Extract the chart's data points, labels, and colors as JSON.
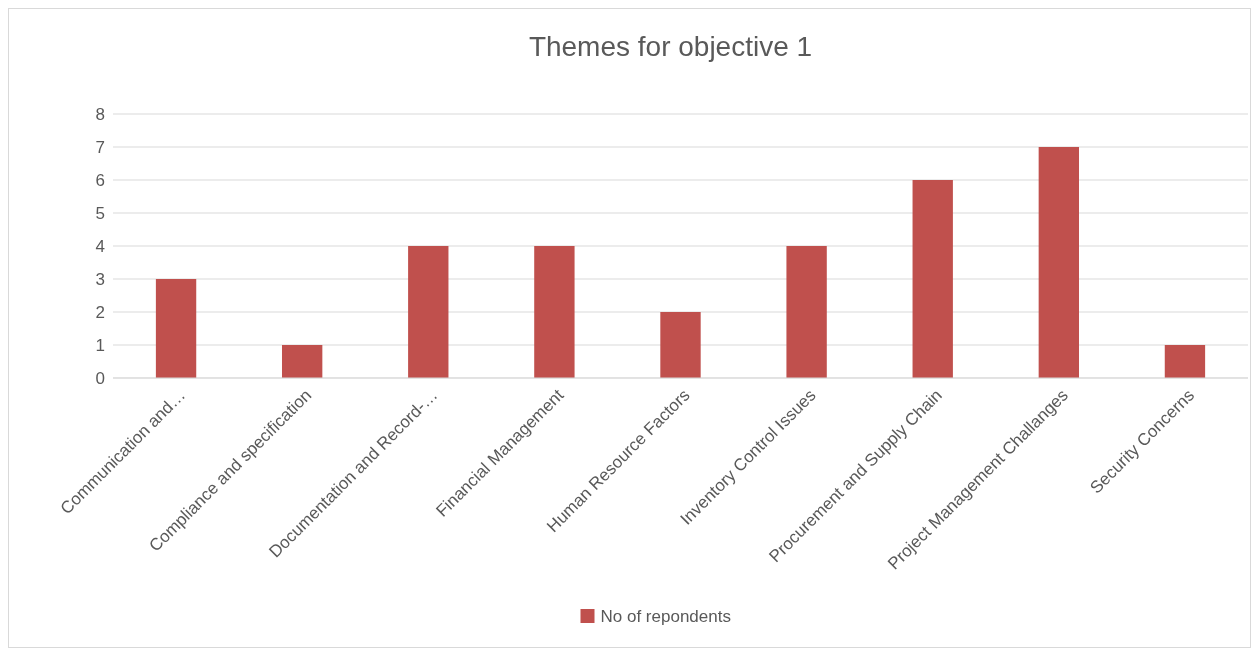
{
  "chart_data": {
    "type": "bar",
    "title": "Themes for objective 1",
    "categories": [
      "Communication and…",
      "Compliance and specification",
      "Documentation and Record-…",
      "Financial Management",
      "Human Resource Factors",
      "Inventory Control Issues",
      "Procurement and Supply Chain",
      "Project Management Challanges",
      "Security Concerns"
    ],
    "series": [
      {
        "name": "No of repondents",
        "color": "#c0504d",
        "values": [
          3,
          1,
          4,
          4,
          2,
          4,
          6,
          7,
          1
        ]
      }
    ],
    "ylim": [
      0,
      8
    ],
    "yticks": [
      0,
      1,
      2,
      3,
      4,
      5,
      6,
      7,
      8
    ],
    "grid": "y",
    "legend": "bottom"
  }
}
